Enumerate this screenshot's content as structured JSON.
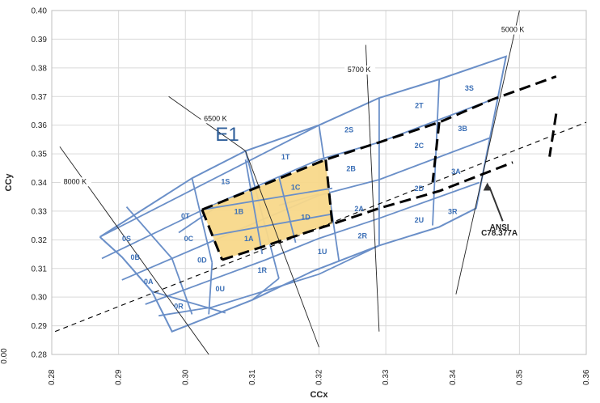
{
  "chart_data": {
    "type": "scatter",
    "xlabel": "CCx",
    "ylabel": "CCy",
    "xlim": [
      0.28,
      0.36
    ],
    "ylim": [
      0.28,
      0.4
    ],
    "x_ticks": [
      "0.28",
      "0.29",
      "0.30",
      "0.31",
      "0.32",
      "0.33",
      "0.34",
      "0.35",
      "0.36"
    ],
    "y_ticks": [
      "0.28",
      "0.29",
      "0.30",
      "0.31",
      "0.32",
      "0.33",
      "0.34",
      "0.35",
      "0.36",
      "0.37",
      "0.38",
      "0.39",
      "0.40"
    ],
    "grid": true,
    "cropped_tick_label": "0.00",
    "region_label": "E1",
    "annotation": {
      "text_lines": [
        "ANSI",
        "C78.377A"
      ]
    },
    "colors": {
      "bins": "#6a8fc8",
      "highlight": "#f8d88a",
      "grid": "#d9d9d9",
      "dashed": "#000000"
    },
    "cct_lines": [
      {
        "label": "8000 K",
        "x1": 0.2812,
        "y1": 0.3525,
        "x2": 0.3035,
        "y2": 0.28,
        "lx": 0.2835,
        "ly": 0.3395
      },
      {
        "label": "6500 K",
        "x1": 0.2975,
        "y1": 0.37,
        "x2": 0.309,
        "y2": 0.351,
        "lx": 0.3045,
        "ly": 0.3615
      },
      {
        "label": "6500 K seg",
        "x1": 0.309,
        "y1": 0.351,
        "x2": 0.32,
        "y2": 0.2825,
        "lx": null,
        "ly": null
      },
      {
        "label": "5700 K",
        "x1": 0.327,
        "y1": 0.388,
        "x2": 0.329,
        "y2": 0.288,
        "lx": 0.326,
        "ly": 0.3785
      },
      {
        "label": "5000 K",
        "x1": 0.35,
        "y1": 0.4,
        "x2": 0.3405,
        "y2": 0.301,
        "lx": 0.349,
        "ly": 0.3925
      }
    ],
    "bins": [
      {
        "name": "0S",
        "x": 0.2912,
        "y": 0.3195
      },
      {
        "name": "0T",
        "x": 0.3,
        "y": 0.3275
      },
      {
        "name": "0B",
        "x": 0.2925,
        "y": 0.313
      },
      {
        "name": "0C",
        "x": 0.3005,
        "y": 0.3195
      },
      {
        "name": "0A",
        "x": 0.2945,
        "y": 0.3045
      },
      {
        "name": "0D",
        "x": 0.3025,
        "y": 0.312
      },
      {
        "name": "0R",
        "x": 0.299,
        "y": 0.296
      },
      {
        "name": "0U",
        "x": 0.3052,
        "y": 0.302
      },
      {
        "name": "1S",
        "x": 0.306,
        "y": 0.3395
      },
      {
        "name": "1T",
        "x": 0.315,
        "y": 0.348
      },
      {
        "name": "1B",
        "x": 0.308,
        "y": 0.329
      },
      {
        "name": "1C",
        "x": 0.3165,
        "y": 0.3375
      },
      {
        "name": "1A",
        "x": 0.3095,
        "y": 0.3195
      },
      {
        "name": "1D",
        "x": 0.318,
        "y": 0.327
      },
      {
        "name": "1R",
        "x": 0.3115,
        "y": 0.3085
      },
      {
        "name": "1U",
        "x": 0.3205,
        "y": 0.315
      },
      {
        "name": "2S",
        "x": 0.3245,
        "y": 0.3575
      },
      {
        "name": "2T",
        "x": 0.335,
        "y": 0.366
      },
      {
        "name": "2B",
        "x": 0.3248,
        "y": 0.344
      },
      {
        "name": "2C",
        "x": 0.335,
        "y": 0.352
      },
      {
        "name": "2A",
        "x": 0.326,
        "y": 0.33
      },
      {
        "name": "2D",
        "x": 0.335,
        "y": 0.337
      },
      {
        "name": "2R",
        "x": 0.3265,
        "y": 0.3205
      },
      {
        "name": "2U",
        "x": 0.335,
        "y": 0.326
      },
      {
        "name": "3S",
        "x": 0.3425,
        "y": 0.372
      },
      {
        "name": "3B",
        "x": 0.3415,
        "y": 0.358
      },
      {
        "name": "3A",
        "x": 0.3405,
        "y": 0.343
      },
      {
        "name": "3R",
        "x": 0.34,
        "y": 0.329
      }
    ]
  }
}
